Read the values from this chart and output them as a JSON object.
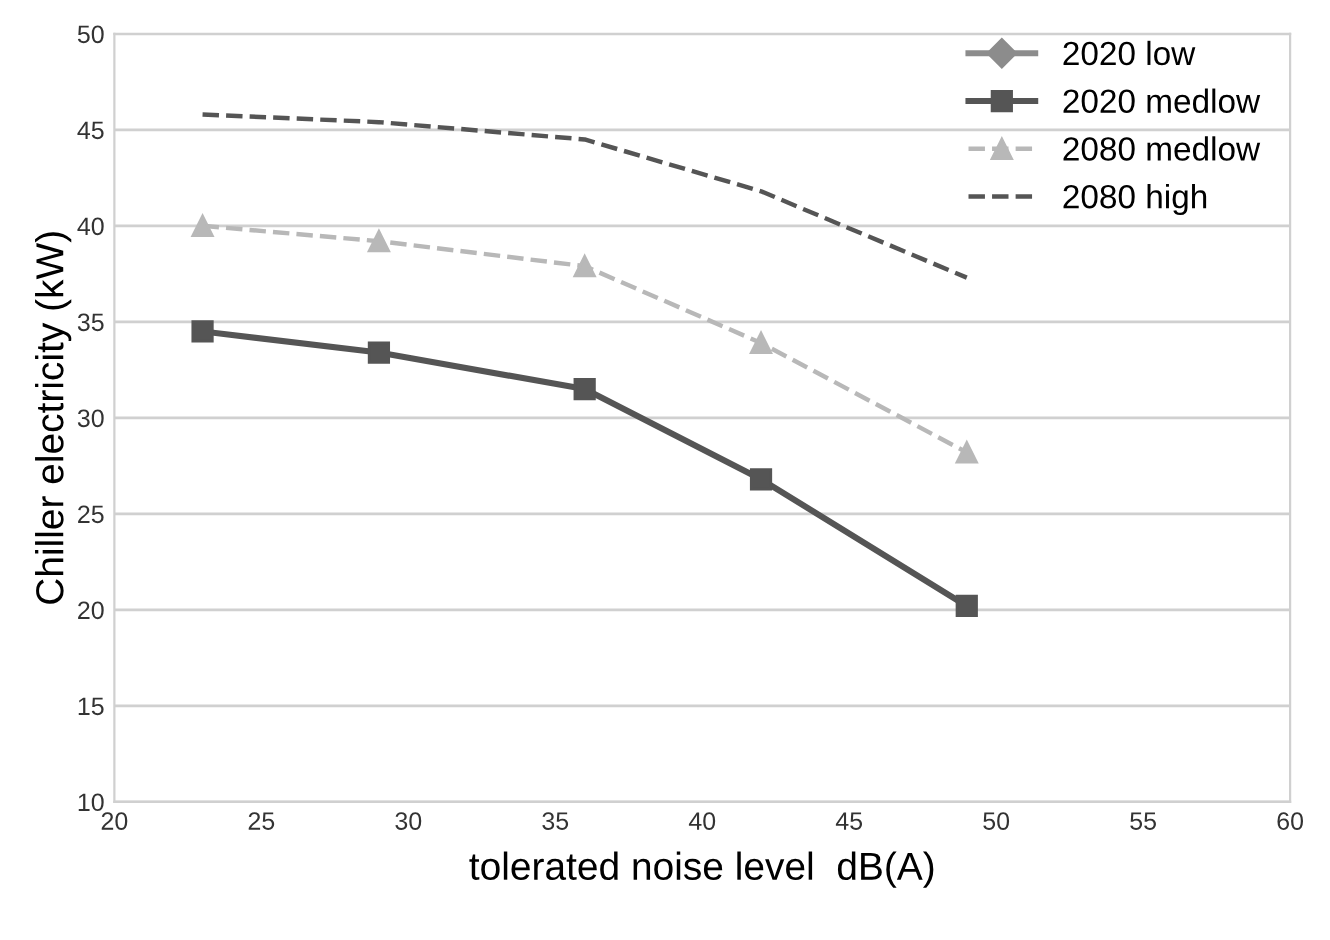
{
  "chart_data": {
    "type": "line",
    "xlabel": "tolerated noise level  dB(A)",
    "ylabel": "Chiller electricity (kW)",
    "x": [
      23,
      29,
      36,
      42,
      49
    ],
    "series": [
      {
        "name": "2020 low",
        "color": "#8c8c8c",
        "marker": "diamond",
        "line_style": "solid",
        "values": [
          null,
          null,
          null,
          null,
          null
        ]
      },
      {
        "name": "2020 medlow",
        "color": "#555555",
        "marker": "square",
        "line_style": "solid",
        "values": [
          34.5,
          33.4,
          31.5,
          26.8,
          20.2
        ]
      },
      {
        "name": "2080 medlow",
        "color": "#b8b8b8",
        "marker": "triangle",
        "line_style": "dashed",
        "values": [
          40,
          39.2,
          37.9,
          33.9,
          28.2
        ]
      },
      {
        "name": "2080 high",
        "color": "#555555",
        "marker": "none",
        "line_style": "dashed",
        "values": [
          45.8,
          45.4,
          44.5,
          41.8,
          37.3
        ]
      }
    ],
    "xlim": [
      20,
      60
    ],
    "xticks": [
      20,
      25,
      30,
      35,
      40,
      45,
      50,
      55,
      60
    ],
    "ylim": [
      10,
      50
    ],
    "yticks": [
      10,
      15,
      20,
      25,
      30,
      35,
      40,
      45,
      50
    ],
    "grid": "y",
    "legend": "top right"
  }
}
